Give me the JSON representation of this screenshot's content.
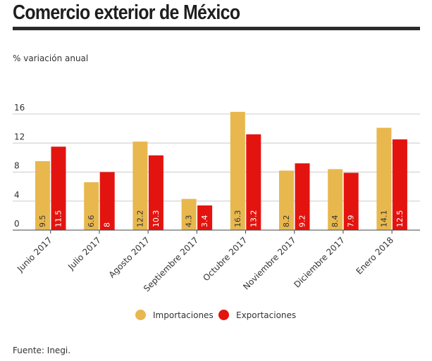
{
  "title": "Comercio exterior de México",
  "subtitle": "% variación anual",
  "source": "Fuente: Inegi.",
  "colors": {
    "imports": "#e8b84e",
    "exports": "#e3140f",
    "grid": "#cccccc",
    "axis": "#444444"
  },
  "chart_data": {
    "type": "bar",
    "categories": [
      "Junio 2017",
      "Julio 2017",
      "Agosto 2017",
      "Septiembre 2017",
      "Octubre 2017",
      "Noviembre 2017",
      "Diciembre 2017",
      "Enero 2018"
    ],
    "series": [
      {
        "name": "Importaciones",
        "values": [
          9.5,
          6.6,
          12.2,
          4.3,
          16.3,
          8.2,
          8.4,
          14.1
        ],
        "labels": [
          "9.5",
          "6.6",
          "12.2",
          "4.3",
          "16.3",
          "8.2",
          "8.4",
          "14.1"
        ]
      },
      {
        "name": "Exportaciones",
        "values": [
          11.5,
          8,
          10.3,
          3.4,
          13.2,
          9.2,
          7.9,
          12.5
        ],
        "labels": [
          "11.5",
          "8",
          "10.3",
          "3.4",
          "13.2",
          "9.2",
          "7.9",
          "12.5"
        ]
      }
    ],
    "ylim": [
      0,
      16
    ],
    "yticks": [
      0,
      4,
      8,
      12,
      16
    ],
    "ytick_labels": [
      "0",
      "4",
      "8",
      "12",
      "16"
    ],
    "grid": true,
    "legend": "bottom-center"
  }
}
